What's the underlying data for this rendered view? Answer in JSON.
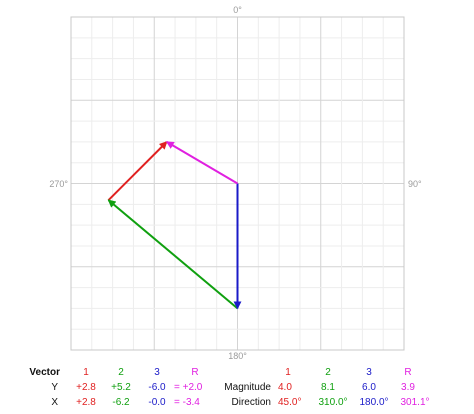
{
  "compass": {
    "top": "0°",
    "right": "90°",
    "bottom": "180°",
    "left": "270°"
  },
  "colors": {
    "v1": "#e02020",
    "v2": "#10a010",
    "v3": "#1a1ac8",
    "r": "#e020e0",
    "grid_minor": "#ededed",
    "grid_major": "#d4d4d4",
    "frame": "#c8c8c8"
  },
  "diagram": {
    "grid_units_per_side": 16,
    "grid_major_every": 4,
    "vector_scale_units": 1
  },
  "vectors": [
    {
      "name": "1",
      "dx": 2.8,
      "dy": 2.8,
      "color_key": "v1"
    },
    {
      "name": "2",
      "dx": -6.2,
      "dy": 5.2,
      "color_key": "v2"
    },
    {
      "name": "3",
      "dx": -0.0,
      "dy": -6.0,
      "color_key": "v3"
    },
    {
      "name": "R",
      "dx": -3.4,
      "dy": 2.0,
      "color_key": "r"
    }
  ],
  "table": {
    "vector_label": "Vector",
    "y_label": "Y",
    "x_label": "X",
    "magnitude_label": "Magnitude",
    "direction_label": "Direction",
    "headers": [
      "1",
      "2",
      "3",
      "R"
    ],
    "y_values": [
      "+2.8",
      "+5.2",
      "-6.0",
      "= +2.0"
    ],
    "x_values": [
      "+2.8",
      "-6.2",
      "-0.0",
      "= -3.4"
    ],
    "magnitudes": [
      "4.0",
      "8.1",
      "6.0",
      "3.9"
    ],
    "directions": [
      "45.0°",
      "310.0°",
      "180.0°",
      "301.1°"
    ]
  }
}
